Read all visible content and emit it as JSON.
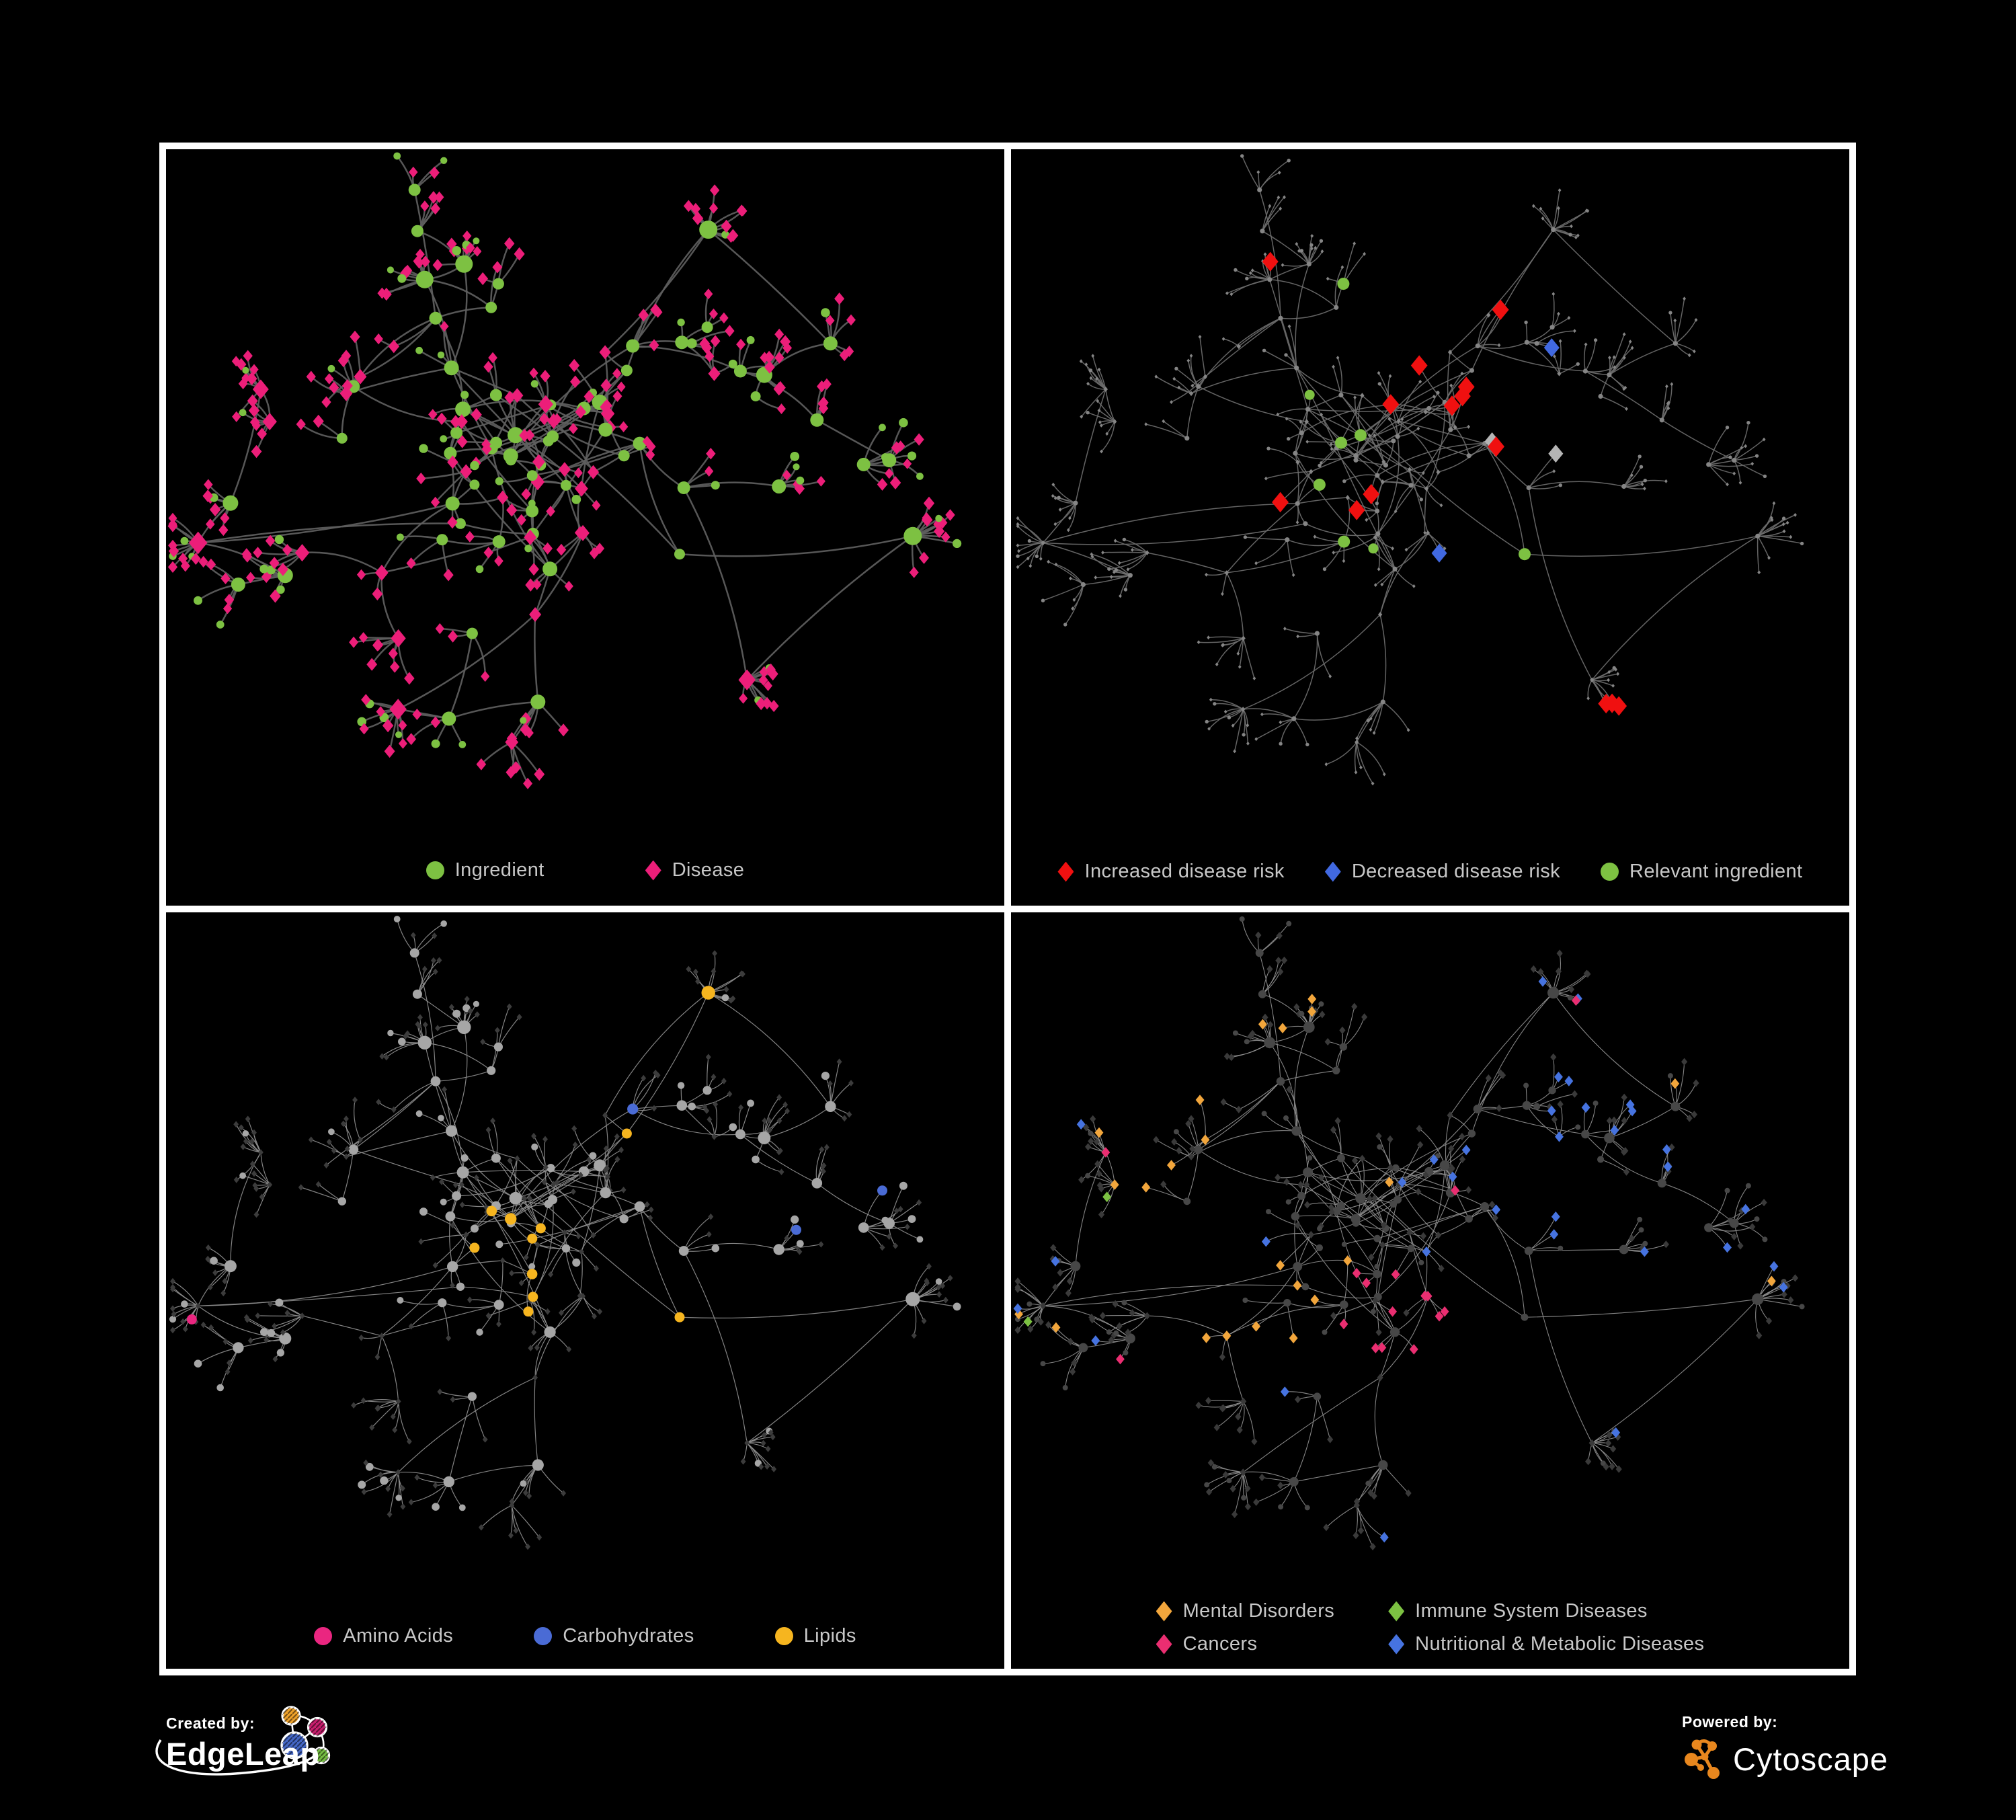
{
  "figure": {
    "background": "#000000",
    "frame_color": "#FFFFFF"
  },
  "panels": [
    {
      "id": "ingredient-disease",
      "legend": [
        {
          "label": "Ingredient",
          "shape": "circle",
          "color": "#7DC142"
        },
        {
          "label": "Disease",
          "shape": "diamond",
          "color": "#EC1E79"
        }
      ],
      "style": {
        "edge_color": "#5E5E5E",
        "edge_width": 2.5,
        "ingredient_color": "#7DC142",
        "disease_color": "#EC1E79"
      }
    },
    {
      "id": "disease-risk",
      "legend": [
        {
          "label": "Increased disease risk",
          "shape": "diamond",
          "color": "#F01010"
        },
        {
          "label": "Decreased disease risk",
          "shape": "diamond",
          "color": "#4169E1"
        },
        {
          "label": "Relevant ingredient",
          "shape": "circle",
          "color": "#7DC142"
        }
      ],
      "style": {
        "edge_color": "#6C6C6C",
        "edge_width": 1.5,
        "base_color": "#858585",
        "neutral_highlight_color": "#B5B5B5"
      }
    },
    {
      "id": "ingredient-classes",
      "legend": [
        {
          "label": "Amino Acids",
          "shape": "circle",
          "color": "#EA2680"
        },
        {
          "label": "Carbohydrates",
          "shape": "circle",
          "color": "#4A6BD5"
        },
        {
          "label": "Lipids",
          "shape": "circle",
          "color": "#F6B51F"
        }
      ],
      "style": {
        "edge_color": "#8E8E8E",
        "edge_width": 1.2,
        "disease_color": "#3C3C3C",
        "ingredient_color": "#A6A6A6"
      }
    },
    {
      "id": "disease-classes",
      "legend": [
        {
          "label": "Mental Disorders",
          "shape": "diamond",
          "color": "#F2A63C"
        },
        {
          "label": "Immune System Diseases",
          "shape": "diamond",
          "color": "#7CC142"
        },
        {
          "label": "Cancers",
          "shape": "diamond",
          "color": "#EA2E71"
        },
        {
          "label": "Nutritional & Metabolic Diseases",
          "shape": "diamond",
          "color": "#4673E0"
        }
      ],
      "style": {
        "edge_color": "#8F8F8F",
        "edge_width": 1.1,
        "disease_color": "#3A3A3A",
        "ingredient_color": "#474747"
      }
    }
  ],
  "footer": {
    "created_by": {
      "label": "Created by:",
      "brand": "EdgeLeap",
      "logo_colors": {
        "orange": "#F0A32B",
        "magenta": "#C81E6E",
        "blue": "#4467C6",
        "green": "#76BE43"
      }
    },
    "powered_by": {
      "label": "Powered by:",
      "brand": "Cytoscape",
      "logo_color": "#E8871E"
    }
  }
}
